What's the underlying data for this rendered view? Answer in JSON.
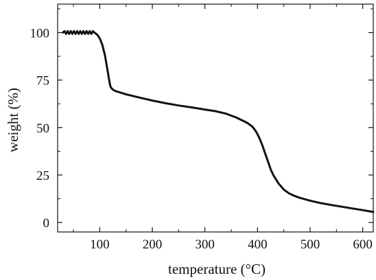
{
  "chart_data": {
    "type": "line",
    "title": "",
    "xlabel": "temperature (°C)",
    "ylabel": "weight (%)",
    "xlim": [
      20,
      620
    ],
    "ylim": [
      -5,
      115
    ],
    "xticks": [
      100,
      200,
      300,
      400,
      500,
      600
    ],
    "yticks": [
      0,
      25,
      50,
      75,
      100
    ],
    "x_minor_step": 50,
    "y_minor_step": 12.5,
    "grid": false,
    "legend": "none",
    "line_color": "#111111",
    "series": [
      {
        "x": [
          30,
          33,
          36,
          39,
          42,
          45,
          48,
          51,
          54,
          57,
          60,
          63,
          66,
          69,
          72,
          75,
          78,
          81,
          84,
          87,
          90,
          95,
          100,
          105,
          110,
          115,
          118,
          120,
          122,
          125,
          130,
          150,
          175,
          200,
          225,
          250,
          275,
          300,
          320,
          340,
          360,
          380,
          390,
          395,
          400,
          405,
          410,
          415,
          420,
          425,
          430,
          440,
          450,
          460,
          470,
          480,
          500,
          520,
          540,
          560,
          580,
          600,
          620
        ],
        "y": [
          100,
          100.8,
          99.3,
          100.8,
          99.3,
          100.8,
          99.3,
          100.8,
          99.3,
          100.8,
          99.3,
          100.8,
          99.3,
          100.8,
          99.3,
          100.8,
          99.3,
          100.8,
          99.3,
          100.8,
          100,
          99,
          97,
          93.5,
          88,
          80,
          75,
          72,
          70.8,
          70,
          69.2,
          67.5,
          65.8,
          64.2,
          62.8,
          61.6,
          60.6,
          59.5,
          58.6,
          57.3,
          55.2,
          52.5,
          50.5,
          48.8,
          46.5,
          43.5,
          40,
          36,
          32,
          28,
          25,
          20.5,
          17.3,
          15.3,
          14,
          13,
          11.5,
          10.2,
          9.2,
          8.3,
          7.4,
          6.5,
          5.5
        ]
      }
    ]
  }
}
